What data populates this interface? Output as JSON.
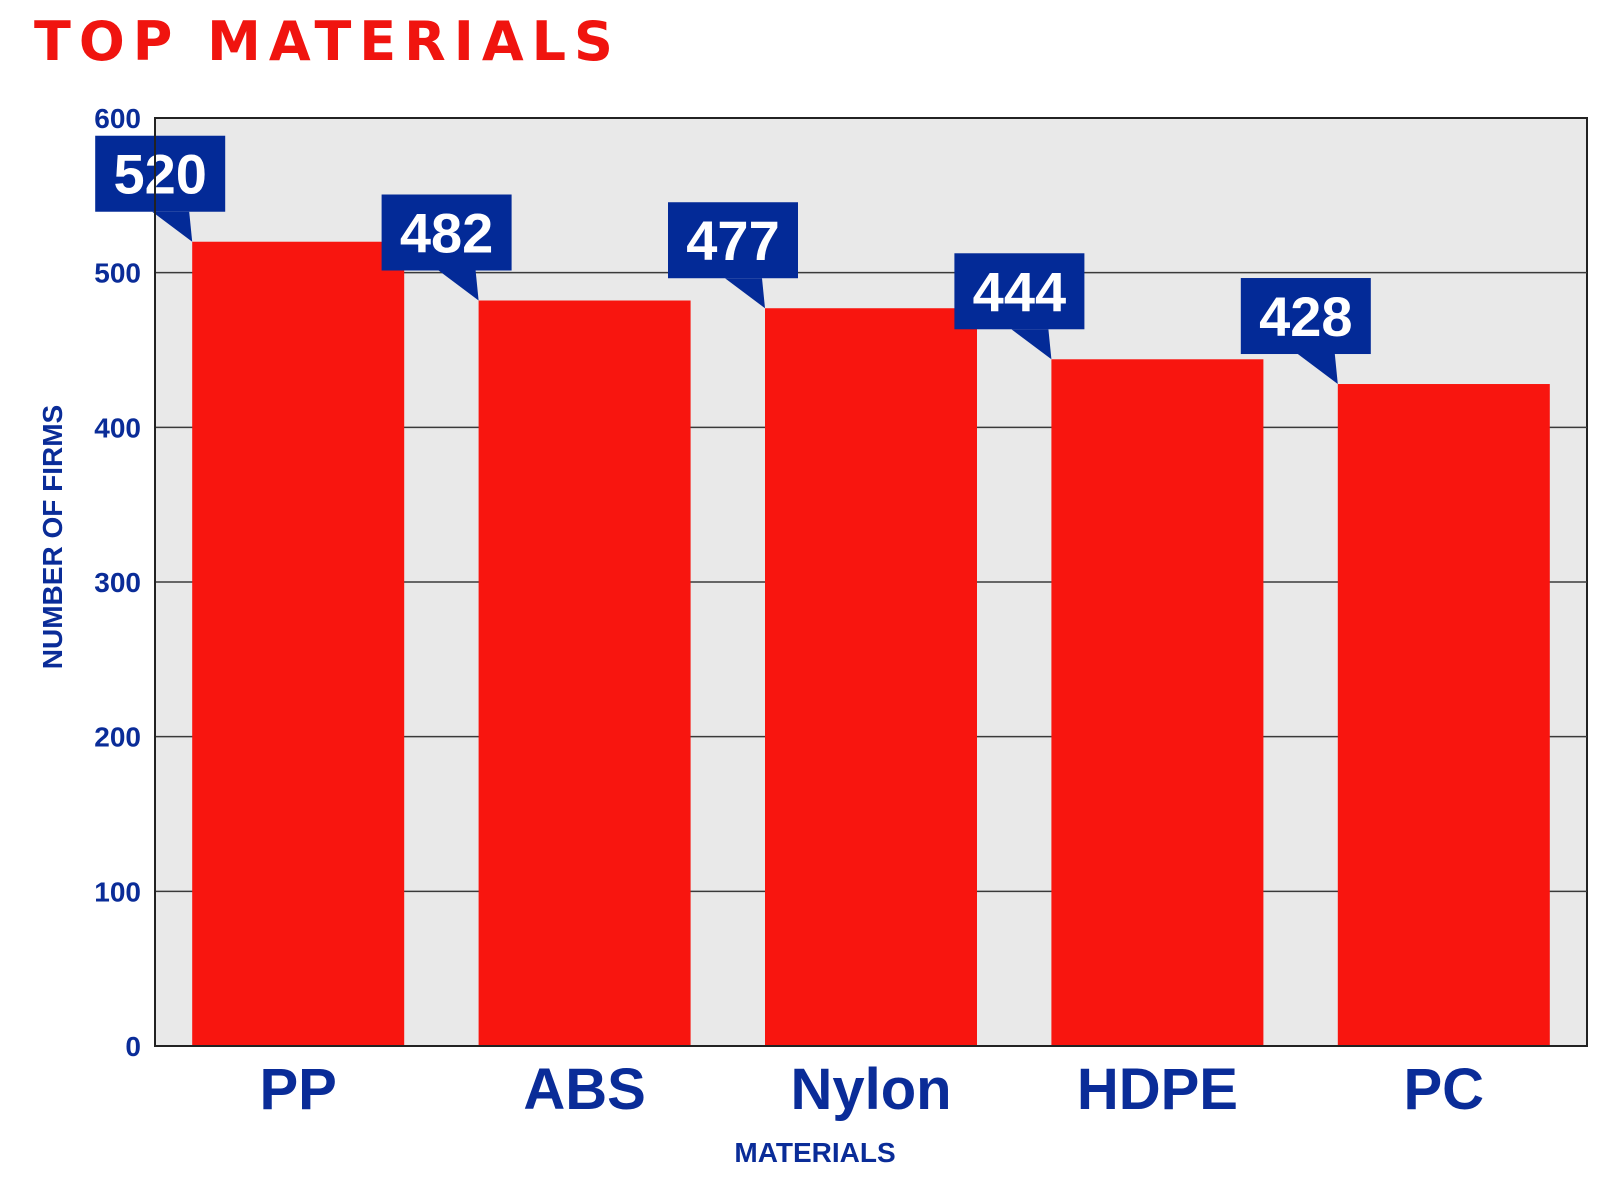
{
  "chart_data": {
    "type": "bar",
    "title": "TOP MATERIALS",
    "categories": [
      "PP",
      "ABS",
      "Nylon",
      "HDPE",
      "PC"
    ],
    "values": [
      520,
      482,
      477,
      444,
      428
    ],
    "data_labels": [
      "520",
      "482",
      "477",
      "444",
      "428"
    ],
    "xlabel": "MATERIALS",
    "ylabel": "NUMBER OF FIRMS",
    "ylim": [
      0,
      600
    ],
    "yticks": [
      0,
      100,
      200,
      300,
      400,
      500,
      600
    ],
    "ytick_labels": [
      "0",
      "100",
      "200",
      "300",
      "400",
      "500",
      "600"
    ],
    "grid": true,
    "legend": "none"
  },
  "colors": {
    "title": "#f0140f",
    "bar": "#f8150f",
    "callout": "#032a97",
    "callout_text": "#ffffff",
    "axis_text": "#0a2c98",
    "plot_background": "#e9e9e9",
    "gridline": "#3a3a3a",
    "axis_line": "#222222"
  }
}
